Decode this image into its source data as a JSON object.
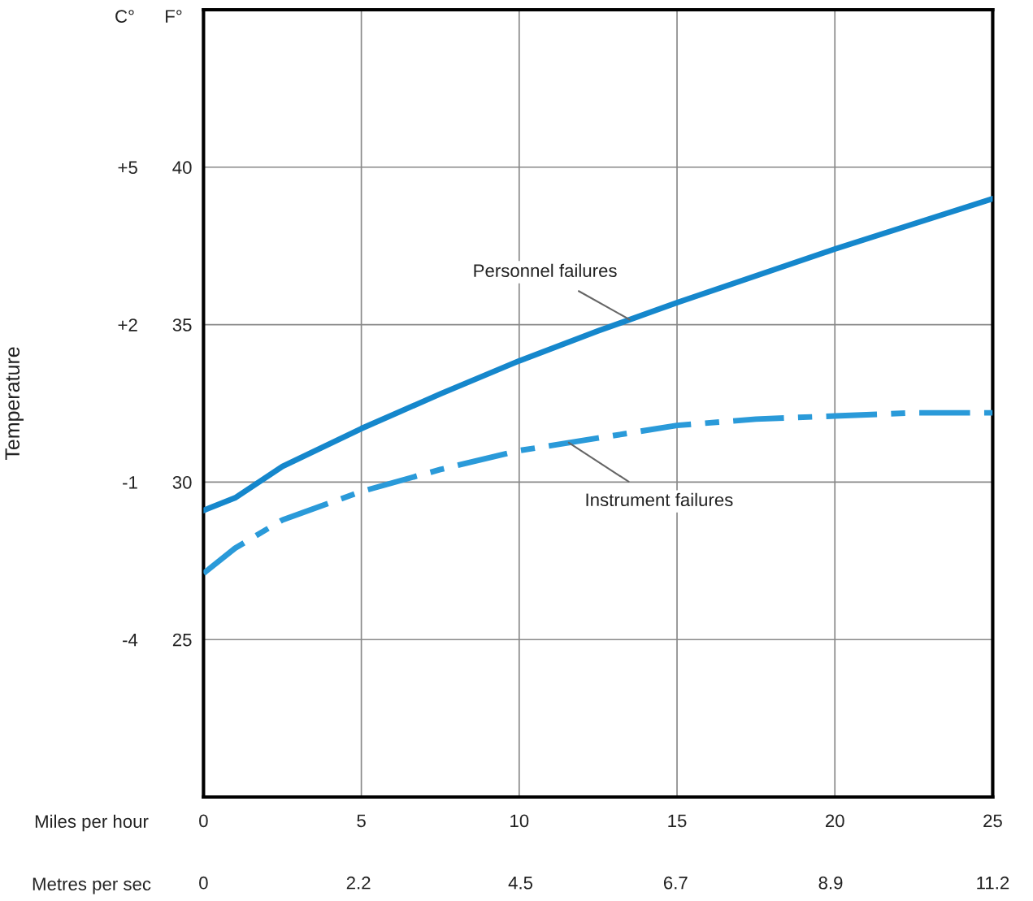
{
  "chart_data": {
    "type": "line",
    "ylabel": "F°",
    "y2label": "Temperature",
    "xlabel": "Miles per hour",
    "x2label": "Metres per sec",
    "annotations": [
      "C°"
    ],
    "x": [
      0,
      1,
      2.5,
      5,
      7.5,
      10,
      12.5,
      15,
      17.5,
      20,
      22.5,
      25
    ],
    "series": [
      {
        "name": "Personnel failures",
        "color": "#1587cc",
        "line_style": "solid",
        "values": [
          29.1,
          29.5,
          30.5,
          31.7,
          32.8,
          33.85,
          34.8,
          35.7,
          36.55,
          37.4,
          38.2,
          39.0
        ]
      },
      {
        "name": "Instrument failures",
        "color": "#2a9ad9",
        "line_style": "dashdot",
        "values": [
          27.1,
          27.9,
          28.8,
          29.7,
          30.4,
          31.0,
          31.4,
          31.8,
          32.0,
          32.1,
          32.2,
          32.2
        ]
      }
    ],
    "xlim": [
      0,
      25
    ],
    "xticks": [
      0,
      5,
      10,
      15,
      20,
      25
    ],
    "x2lim": [
      0,
      11.2
    ],
    "x2ticks": [
      0,
      2.2,
      4.5,
      6.7,
      8.9,
      11.2
    ],
    "ylim": [
      20,
      45
    ],
    "yticks": [
      25,
      30,
      35,
      40
    ],
    "y2lim": [
      -7,
      8
    ],
    "y2ticks": [
      -4,
      -1,
      {
        "value": 2,
        "label": "+2"
      },
      {
        "value": 5,
        "label": "+5"
      }
    ],
    "grid": true,
    "legend": false,
    "marker": "none"
  }
}
